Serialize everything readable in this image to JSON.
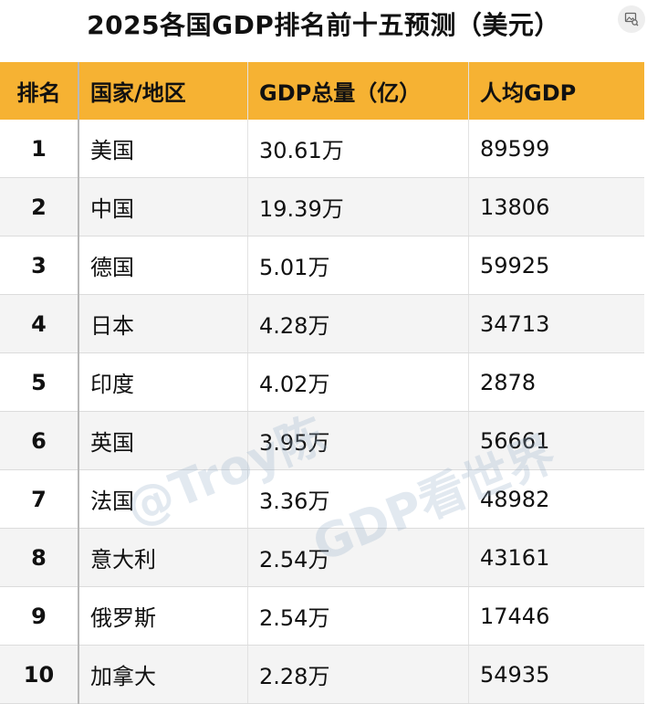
{
  "title": "2025各国GDP排名前十五预测（美元）",
  "table": {
    "headers": [
      "排名",
      "国家/地区",
      "GDP总量（亿）",
      "人均GDP"
    ],
    "rows": [
      {
        "rank": "1",
        "country": "美国",
        "gdp": "30.61万",
        "per_capita": "89599"
      },
      {
        "rank": "2",
        "country": "中国",
        "gdp": "19.39万",
        "per_capita": "13806"
      },
      {
        "rank": "3",
        "country": "德国",
        "gdp": "5.01万",
        "per_capita": "59925"
      },
      {
        "rank": "4",
        "country": "日本",
        "gdp": "4.28万",
        "per_capita": "34713"
      },
      {
        "rank": "5",
        "country": "印度",
        "gdp": "4.02万",
        "per_capita": "2878"
      },
      {
        "rank": "6",
        "country": "英国",
        "gdp": "3.95万",
        "per_capita": "56661"
      },
      {
        "rank": "7",
        "country": "法国",
        "gdp": "3.36万",
        "per_capita": "48982"
      },
      {
        "rank": "8",
        "country": "意大利",
        "gdp": "2.54万",
        "per_capita": "43161"
      },
      {
        "rank": "9",
        "country": "俄罗斯",
        "gdp": "2.54万",
        "per_capita": "17446"
      },
      {
        "rank": "10",
        "country": "加拿大",
        "gdp": "2.28万",
        "per_capita": "54935"
      }
    ]
  },
  "watermark": {
    "line1": "@Troy陈",
    "line2": "GDP看世界"
  },
  "icons": {
    "corner": "image-search-icon"
  },
  "colors": {
    "header_bg": "#f6b233",
    "stripe_bg": "#f4f4f4"
  }
}
